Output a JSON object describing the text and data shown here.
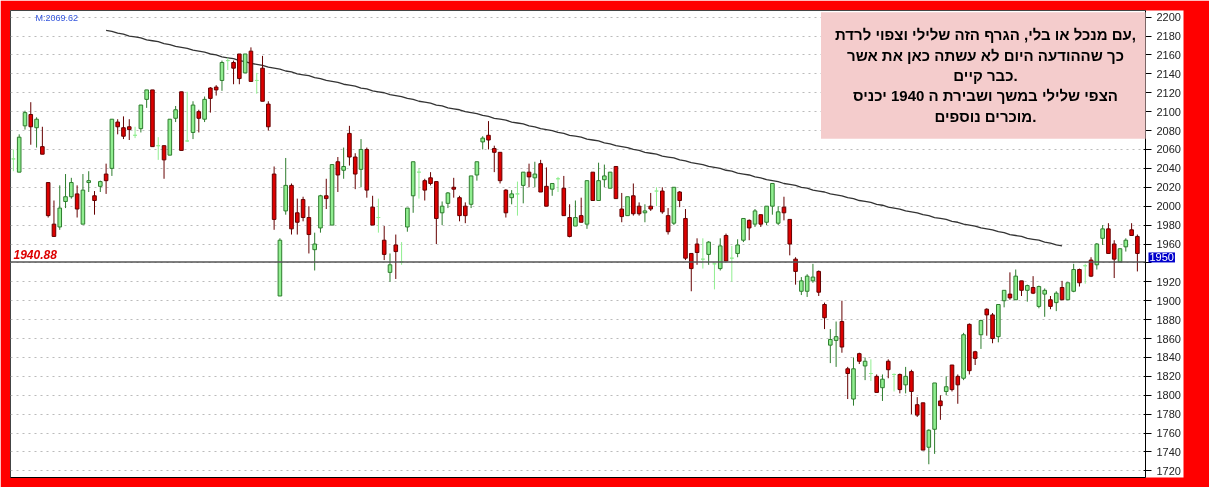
{
  "chart_data": {
    "type": "candlestick",
    "categories": [
      null,
      null,
      null,
      null,
      null,
      null,
      null,
      null,
      null,
      null,
      null,
      null,
      null,
      null,
      null,
      null,
      null,
      null,
      null,
      null,
      null,
      null,
      null,
      null,
      null,
      null,
      null,
      null,
      null,
      null,
      null,
      null,
      null,
      null,
      null,
      null,
      null,
      null,
      null,
      null,
      null,
      null,
      null,
      null,
      null,
      null,
      null,
      null,
      null,
      null,
      null,
      null,
      null,
      null,
      null,
      null,
      null,
      null,
      null,
      null,
      null,
      null,
      null,
      null,
      null,
      null,
      null,
      null,
      null,
      null,
      null,
      null,
      null,
      null,
      null,
      null,
      null,
      null,
      null,
      null,
      null,
      null,
      null,
      null,
      null,
      null,
      null,
      null,
      null,
      null,
      null,
      null,
      null,
      null,
      null,
      null,
      null,
      null,
      null,
      null,
      null,
      null,
      null,
      null,
      null,
      null,
      null,
      null,
      null,
      null,
      null,
      null,
      null,
      null,
      null,
      null,
      null,
      null,
      null,
      null,
      null,
      null,
      null,
      null,
      null,
      null,
      null,
      null,
      null,
      null,
      null,
      null,
      null,
      null,
      null,
      null,
      null,
      null,
      null,
      null,
      null,
      null,
      null,
      null,
      null,
      null,
      null,
      null,
      null,
      null,
      null,
      null,
      null,
      null,
      null,
      null,
      null,
      null,
      null,
      null,
      null,
      null,
      null,
      null,
      null,
      null,
      null,
      null,
      null,
      null,
      null,
      null,
      null,
      null,
      null,
      null,
      null,
      null,
      null,
      null,
      null,
      null,
      null,
      null,
      null,
      null,
      null,
      null,
      null,
      null,
      null,
      null,
      null,
      null,
      null
    ],
    "ohlc": [
      [
        2050,
        2060,
        2037,
        2050
      ],
      [
        2036,
        2076,
        2036,
        2073
      ],
      [
        2085,
        2101,
        2081,
        2099
      ],
      [
        2097,
        2110,
        2065,
        2084
      ],
      [
        2083,
        2094,
        2062,
        2092
      ],
      [
        2063,
        2084,
        2055,
        2055
      ],
      [
        2025,
        2025,
        1988,
        1990
      ],
      [
        1981,
        2006,
        1968,
        1968
      ],
      [
        1978,
        2022,
        1975,
        1998
      ],
      [
        2005,
        2034,
        1998,
        2010
      ],
      [
        2010,
        2030,
        2008,
        2025
      ],
      [
        2013,
        2022,
        1988,
        1997
      ],
      [
        1981,
        2034,
        1981,
        2017
      ],
      [
        2025,
        2037,
        2015,
        2027
      ],
      [
        2011,
        2016,
        1991,
        2006
      ],
      [
        2021,
        2027,
        2015,
        2026
      ],
      [
        2034,
        2045,
        2013,
        2027
      ],
      [
        2040,
        2092,
        2032,
        2092
      ],
      [
        2089,
        2092,
        2076,
        2084
      ],
      [
        2083,
        2095,
        2071,
        2074
      ],
      [
        2084,
        2092,
        2070,
        2081
      ],
      [
        2075,
        2084,
        2072,
        2075
      ],
      [
        2082,
        2107,
        2078,
        2107
      ],
      [
        2113,
        2123,
        2104,
        2123
      ],
      [
        2123,
        2123,
        2063,
        2063
      ],
      [
        2064,
        2073,
        2049,
        2064
      ],
      [
        2064,
        2064,
        2029,
        2049
      ],
      [
        2054,
        2092,
        2054,
        2092
      ],
      [
        2093,
        2106,
        2089,
        2102
      ],
      [
        2121,
        2121,
        2059,
        2059
      ],
      [
        2069,
        2121,
        2068,
        2069
      ],
      [
        2078,
        2111,
        2071,
        2107
      ],
      [
        2100,
        2102,
        2078,
        2093
      ],
      [
        2092,
        2116,
        2089,
        2113
      ],
      [
        2125,
        2126,
        2099,
        2114
      ],
      [
        2126,
        2128,
        2117,
        2123
      ],
      [
        2133,
        2154,
        2122,
        2152
      ],
      [
        2154,
        2157,
        2144,
        2154
      ],
      [
        2152,
        2154,
        2129,
        2146
      ],
      [
        2161,
        2161,
        2129,
        2135
      ],
      [
        2141,
        2161,
        2141,
        2161
      ],
      [
        2164,
        2168,
        2132,
        2132
      ],
      [
        2133,
        2141,
        2119,
        2133
      ],
      [
        2146,
        2159,
        2111,
        2111
      ],
      [
        2108,
        2111,
        2080,
        2084
      ],
      [
        2034,
        2042,
        1975,
        1986
      ],
      [
        1905,
        1966,
        1905,
        1964
      ],
      [
        1995,
        2051,
        1991,
        2022
      ],
      [
        2022,
        2024,
        1970,
        1976
      ],
      [
        1993,
        2008,
        1970,
        1983
      ],
      [
        2007,
        2010,
        1984,
        1988
      ],
      [
        1988,
        2000,
        1950,
        1970
      ],
      [
        1954,
        1972,
        1932,
        1960
      ],
      [
        1977,
        2012,
        1972,
        2011
      ],
      [
        2011,
        2029,
        1997,
        2008
      ],
      [
        1980,
        2044,
        1980,
        2044
      ],
      [
        2047,
        2052,
        2015,
        2033
      ],
      [
        2038,
        2062,
        2029,
        2042
      ],
      [
        2077,
        2085,
        2043,
        2052
      ],
      [
        2052,
        2056,
        2018,
        2034
      ],
      [
        2039,
        2071,
        2020,
        2060
      ],
      [
        2060,
        2062,
        2009,
        2017
      ],
      [
        1999,
        2011,
        1980,
        1980
      ],
      [
        1988,
        2008,
        1972,
        1988
      ],
      [
        1964,
        1979,
        1943,
        1949
      ],
      [
        1930,
        1950,
        1920,
        1938
      ],
      [
        1959,
        1970,
        1923,
        1952
      ],
      [
        1941,
        1962,
        1938,
        1941
      ],
      [
        1978,
        1998,
        1973,
        1998
      ],
      [
        2011,
        2047,
        1993,
        2047
      ],
      [
        2036,
        2040,
        2008,
        2036
      ],
      [
        2027,
        2029,
        2006,
        2017
      ],
      [
        2030,
        2036,
        2022,
        2024
      ],
      [
        2026,
        2026,
        1960,
        1987
      ],
      [
        1993,
        2005,
        1980,
        2000
      ],
      [
        2003,
        2015,
        1998,
        2014
      ],
      [
        2020,
        2030,
        2009,
        2018
      ],
      [
        2009,
        2011,
        1984,
        1990
      ],
      [
        2000,
        2004,
        1982,
        1990
      ],
      [
        2002,
        2032,
        1998,
        2032
      ],
      [
        2033,
        2047,
        2027,
        2047
      ],
      [
        2068,
        2074,
        2060,
        2072
      ],
      [
        2075,
        2090,
        2060,
        2070
      ],
      [
        2061,
        2064,
        2036,
        2057
      ],
      [
        2057,
        2057,
        2024,
        2027
      ],
      [
        2017,
        2018,
        1988,
        1993
      ],
      [
        2009,
        2017,
        2002,
        2013
      ],
      [
        2013,
        2026,
        1990,
        2013
      ],
      [
        2022,
        2036,
        2003,
        2036
      ],
      [
        2036,
        2045,
        2020,
        2031
      ],
      [
        2030,
        2047,
        2020,
        2034
      ],
      [
        2045,
        2049,
        2015,
        2015
      ],
      [
        2021,
        2041,
        2000,
        2000
      ],
      [
        2018,
        2024,
        2011,
        2024
      ],
      [
        2029,
        2031,
        2015,
        2029
      ],
      [
        2019,
        2032,
        1990,
        1990
      ],
      [
        1988,
        2002,
        1967,
        1968
      ],
      [
        1979,
        2006,
        1979,
        1988
      ],
      [
        1990,
        2009,
        1983,
        1983
      ],
      [
        1981,
        2027,
        1976,
        2027
      ],
      [
        2036,
        2036,
        2006,
        2006
      ],
      [
        2006,
        2046,
        2006,
        2027
      ],
      [
        2028,
        2044,
        2020,
        2032
      ],
      [
        2019,
        2036,
        2019,
        2036
      ],
      [
        2042,
        2042,
        2008,
        2008
      ],
      [
        1997,
        2014,
        1983,
        1989
      ],
      [
        1990,
        2010,
        1990,
        2010
      ],
      [
        2011,
        2024,
        1990,
        1992
      ],
      [
        2000,
        2004,
        1990,
        1992
      ],
      [
        1993,
        2002,
        1983,
        1995
      ],
      [
        2000,
        2014,
        1995,
        1997
      ],
      [
        2016,
        2020,
        2000,
        2016
      ],
      [
        2016,
        2020,
        1992,
        1994
      ],
      [
        1990,
        1998,
        1970,
        1973
      ],
      [
        1982,
        2020,
        1980,
        2020
      ],
      [
        2015,
        2016,
        1999,
        2006
      ],
      [
        1987,
        1997,
        1943,
        1945
      ],
      [
        1950,
        1950,
        1910,
        1934
      ],
      [
        1960,
        1966,
        1938,
        1951
      ],
      [
        1944,
        1966,
        1934,
        1944
      ],
      [
        1949,
        1963,
        1938,
        1962
      ],
      [
        1939,
        1940,
        1912,
        1939
      ],
      [
        1934,
        1966,
        1932,
        1958
      ],
      [
        1969,
        1971,
        1942,
        1942
      ],
      [
        1945,
        1958,
        1920,
        1945
      ],
      [
        1950,
        1965,
        1946,
        1959
      ],
      [
        1964,
        1987,
        1962,
        1987
      ],
      [
        1985,
        1986,
        1964,
        1977
      ],
      [
        1981,
        1997,
        1978,
        1995
      ],
      [
        1991,
        1991,
        1978,
        1981
      ],
      [
        1983,
        2000,
        1980,
        2000
      ],
      [
        2000,
        2024,
        1991,
        2024
      ],
      [
        1982,
        2000,
        1980,
        1994
      ],
      [
        1999,
        2010,
        1985,
        1993
      ],
      [
        1986,
        1986,
        1948,
        1960
      ],
      [
        1944,
        1946,
        1917,
        1931
      ],
      [
        1910,
        1925,
        1906,
        1921
      ],
      [
        1910,
        1928,
        1904,
        1926
      ],
      [
        1921,
        1939,
        1919,
        1925
      ],
      [
        1931,
        1932,
        1905,
        1909
      ],
      [
        1896,
        1898,
        1870,
        1882
      ],
      [
        1853,
        1870,
        1834,
        1859
      ],
      [
        1858,
        1878,
        1830,
        1862
      ],
      [
        1878,
        1900,
        1845,
        1851
      ],
      [
        1828,
        1830,
        1796,
        1823
      ],
      [
        1796,
        1840,
        1789,
        1828
      ],
      [
        1844,
        1845,
        1833,
        1836
      ],
      [
        1831,
        1840,
        1816,
        1836
      ],
      [
        1823,
        1838,
        1815,
        1823
      ],
      [
        1820,
        1822,
        1803,
        1803
      ],
      [
        1808,
        1822,
        1794,
        1817
      ],
      [
        1836,
        1838,
        1818,
        1827
      ],
      [
        1822,
        1823,
        1804,
        1822
      ],
      [
        1822,
        1823,
        1802,
        1806
      ],
      [
        1811,
        1830,
        1802,
        1820
      ],
      [
        1825,
        1827,
        1780,
        1804
      ],
      [
        1790,
        1798,
        1777,
        1779
      ],
      [
        1792,
        1792,
        1742,
        1742
      ],
      [
        1745,
        1764,
        1727,
        1763
      ],
      [
        1764,
        1813,
        1738,
        1813
      ],
      [
        1794,
        1800,
        1774,
        1789
      ],
      [
        1804,
        1820,
        1800,
        1809
      ],
      [
        1832,
        1832,
        1804,
        1806
      ],
      [
        1820,
        1822,
        1791,
        1811
      ],
      [
        1818,
        1866,
        1816,
        1864
      ],
      [
        1875,
        1876,
        1822,
        1826
      ],
      [
        1846,
        1847,
        1832,
        1839
      ],
      [
        1864,
        1880,
        1849,
        1879
      ],
      [
        1891,
        1892,
        1863,
        1885
      ],
      [
        1885,
        1887,
        1855,
        1860
      ],
      [
        1862,
        1896,
        1856,
        1896
      ],
      [
        1900,
        1911,
        1893,
        1911
      ],
      [
        1907,
        1930,
        1901,
        1903
      ],
      [
        1901,
        1933,
        1901,
        1926
      ],
      [
        1921,
        1921,
        1905,
        1911
      ],
      [
        1911,
        1917,
        1899,
        1916
      ],
      [
        1914,
        1926,
        1907,
        1908
      ],
      [
        1894,
        1916,
        1892,
        1915
      ],
      [
        1907,
        1913,
        1883,
        1911
      ],
      [
        1901,
        1905,
        1891,
        1894
      ],
      [
        1898,
        1910,
        1889,
        1908
      ],
      [
        1914,
        1921,
        1901,
        1901
      ],
      [
        1901,
        1919,
        1901,
        1919
      ],
      [
        1910,
        1939,
        1909,
        1933
      ],
      [
        1933,
        1934,
        1915,
        1919
      ],
      [
        1937,
        1939,
        1918,
        1937
      ],
      [
        1943,
        1946,
        1925,
        1926
      ],
      [
        1938,
        1961,
        1933,
        1960
      ],
      [
        1966,
        1980,
        1959,
        1976
      ],
      [
        1976,
        1982,
        1950,
        1950
      ],
      [
        1960,
        1964,
        1924,
        1944
      ],
      [
        1941,
        1955,
        1941,
        1955
      ],
      [
        1957,
        1966,
        1952,
        1964
      ],
      [
        1975,
        1982,
        1969,
        1969
      ],
      [
        1968,
        1970,
        1931,
        1950
      ]
    ],
    "colors": [
      "#90ee90",
      "#90ee90",
      "#90ee90",
      "#dd0000",
      "#90ee90",
      "#dd0000",
      "#dd0000",
      "#dd0000",
      "#90ee90",
      "#90ee90",
      "#90ee90",
      "#dd0000",
      "#90ee90",
      "#90ee90",
      "#dd0000",
      "#90ee90",
      "#dd0000",
      "#90ee90",
      "#dd0000",
      "#dd0000",
      "#dd0000",
      "#90ee90",
      "#90ee90",
      "#90ee90",
      "#dd0000",
      "#90ee90",
      "#dd0000",
      "#90ee90",
      "#90ee90",
      "#dd0000",
      "#90ee90",
      "#90ee90",
      "#dd0000",
      "#90ee90",
      "#dd0000",
      "#dd0000",
      "#90ee90",
      "#90ee90",
      "#dd0000",
      "#dd0000",
      "#90ee90",
      "#dd0000",
      "#90ee90",
      "#dd0000",
      "#dd0000",
      "#dd0000",
      "#90ee90",
      "#90ee90",
      "#dd0000",
      "#dd0000",
      "#dd0000",
      "#dd0000",
      "#90ee90",
      "#90ee90",
      "#dd0000",
      "#90ee90",
      "#dd0000",
      "#90ee90",
      "#dd0000",
      "#dd0000",
      "#90ee90",
      "#dd0000",
      "#dd0000",
      "#90ee90",
      "#dd0000",
      "#90ee90",
      "#dd0000",
      "#90ee90",
      "#90ee90",
      "#90ee90",
      "#90ee90",
      "#dd0000",
      "#dd0000",
      "#dd0000",
      "#90ee90",
      "#90ee90",
      "#dd0000",
      "#dd0000",
      "#dd0000",
      "#90ee90",
      "#90ee90",
      "#90ee90",
      "#dd0000",
      "#dd0000",
      "#dd0000",
      "#dd0000",
      "#90ee90",
      "#90ee90",
      "#90ee90",
      "#dd0000",
      "#90ee90",
      "#dd0000",
      "#dd0000",
      "#90ee90",
      "#90ee90",
      "#dd0000",
      "#dd0000",
      "#90ee90",
      "#dd0000",
      "#90ee90",
      "#dd0000",
      "#90ee90",
      "#90ee90",
      "#90ee90",
      "#dd0000",
      "#dd0000",
      "#90ee90",
      "#dd0000",
      "#dd0000",
      "#90ee90",
      "#dd0000",
      "#90ee90",
      "#dd0000",
      "#dd0000",
      "#90ee90",
      "#dd0000",
      "#dd0000",
      "#dd0000",
      "#dd0000",
      "#90ee90",
      "#90ee90",
      "#90ee90",
      "#90ee90",
      "#dd0000",
      "#90ee90",
      "#90ee90",
      "#90ee90",
      "#dd0000",
      "#90ee90",
      "#dd0000",
      "#90ee90",
      "#90ee90",
      "#90ee90",
      "#dd0000",
      "#dd0000",
      "#dd0000",
      "#90ee90",
      "#90ee90",
      "#90ee90",
      "#dd0000",
      "#dd0000",
      "#90ee90",
      "#90ee90",
      "#dd0000",
      "#dd0000",
      "#90ee90",
      "#dd0000",
      "#90ee90",
      "#90ee90",
      "#dd0000",
      "#90ee90",
      "#dd0000",
      "#90ee90",
      "#dd0000",
      "#90ee90",
      "#dd0000",
      "#dd0000",
      "#dd0000",
      "#90ee90",
      "#90ee90",
      "#dd0000",
      "#90ee90",
      "#dd0000",
      "#dd0000",
      "#90ee90",
      "#dd0000",
      "#dd0000",
      "#90ee90",
      "#dd0000",
      "#dd0000",
      "#90ee90",
      "#90ee90",
      "#dd0000",
      "#90ee90",
      "#dd0000",
      "#90ee90",
      "#dd0000",
      "#90ee90",
      "#90ee90",
      "#dd0000",
      "#90ee90",
      "#dd0000",
      "#90ee90",
      "#90ee90",
      "#dd0000",
      "#90ee90",
      "#dd0000",
      "#90ee90",
      "#90ee90",
      "#dd0000",
      "#dd0000",
      "#90ee90",
      "#90ee90",
      "#dd0000",
      "#dd0000"
    ],
    "series": [
      {
        "type": "line",
        "color": "#333333",
        "values": [
          null,
          null,
          null,
          null,
          null,
          null,
          null,
          null,
          null,
          null,
          null,
          null,
          null,
          null,
          null,
          null,
          2186,
          2185,
          2183,
          2182,
          2180,
          2179,
          2178,
          2176,
          2175,
          2174,
          2172,
          2171,
          2169,
          2168,
          2167,
          2165,
          2164,
          2163,
          2161,
          2160,
          2158,
          2157,
          2156,
          2154,
          2153,
          2151,
          2150,
          2149,
          2147,
          2146,
          2145,
          2143,
          2142,
          2140,
          2139,
          2138,
          2136,
          2135,
          2133,
          2132,
          2131,
          2129,
          2128,
          2127,
          2125,
          2124,
          2122,
          2121,
          2120,
          2118,
          2117,
          2116,
          2114,
          2113,
          2111,
          2110,
          2109,
          2107,
          2106,
          2104,
          2103,
          2102,
          2100,
          2099,
          2098,
          2096,
          2095,
          2093,
          2092,
          2091,
          2089,
          2088,
          2087,
          2085,
          2084,
          2082,
          2081,
          2080,
          2078,
          2077,
          2075,
          2074,
          2073,
          2071,
          2070,
          2069,
          2067,
          2066,
          2064,
          2063,
          2062,
          2060,
          2059,
          2057,
          2056,
          2055,
          2053,
          2052,
          2051,
          2049,
          2048,
          2046,
          2045,
          2044,
          2042,
          2041,
          2040,
          2038,
          2037,
          2035,
          2034,
          2033,
          2031,
          2030,
          2028,
          2027,
          2026,
          2024,
          2023,
          2022,
          2020,
          2019,
          2017,
          2016,
          2015,
          2013,
          2012,
          2011,
          2009,
          2008,
          2006,
          2005,
          2004,
          2002,
          2001,
          1999,
          1998,
          1997,
          1995,
          1994,
          1993,
          1991,
          1990,
          1988,
          1987,
          1986,
          1984,
          1983,
          1981,
          1980,
          1979,
          1977,
          1976,
          1975,
          1973,
          1972,
          1970,
          1969,
          1968,
          1966,
          1965,
          1964,
          1962,
          1961,
          1959,
          1958,
          null,
          null,
          null,
          null,
          null,
          null,
          null,
          null,
          null,
          null,
          null,
          null,
          null
        ]
      }
    ],
    "ylim": [
      1713,
      2207
    ],
    "yticks": [
      1720,
      1740,
      1760,
      1780,
      1800,
      1820,
      1840,
      1860,
      1880,
      1900,
      1920,
      {
        "value": 1940,
        "label": null
      },
      1960,
      1980,
      2000,
      2020,
      2040,
      2060,
      2080,
      2100,
      2120,
      2140,
      2160,
      2180,
      2200
    ],
    "tick_labels": "y",
    "grid": "y",
    "ref_lines": [
      {
        "axis": "y",
        "value": 1940.88,
        "label": "1940.88",
        "color": "#555555"
      }
    ],
    "annotations": [
      "M:2069.62",
      "1950",
      "עם מנכל או בלי, הגרף הזה שלילי וצפוי לרדת,\nכך שההודעה היום לא עשתה כאן את אשר\nכבר קיים.\nהצפי שלילי במשך ושבירת ה 1940 יכניס\nמוכרים נוספים."
    ]
  }
}
